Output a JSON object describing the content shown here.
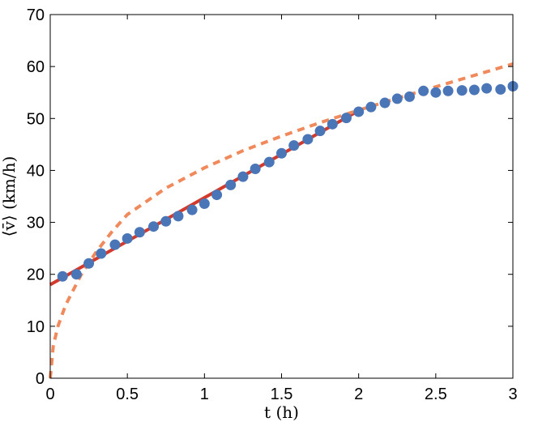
{
  "chart_data": {
    "type": "scatter",
    "xlabel": "t (h)",
    "ylabel": "⟨v̄⟩ (km/h)",
    "xlim": [
      0,
      3
    ],
    "ylim": [
      0,
      70
    ],
    "x_ticks": [
      0,
      0.5,
      1,
      1.5,
      2,
      2.5,
      3
    ],
    "x_tick_labels": [
      "0",
      "0.5",
      "1",
      "1.5",
      "2",
      "2.5",
      "3"
    ],
    "y_ticks": [
      0,
      10,
      20,
      30,
      40,
      50,
      60,
      70
    ],
    "y_tick_labels": [
      "0",
      "10",
      "20",
      "30",
      "40",
      "50",
      "60",
      "70"
    ],
    "grid": false,
    "colors": {
      "points": "#4a76b8",
      "linear_fit": "#d33a2c",
      "power_fit": "#f08a5d"
    },
    "series": [
      {
        "kind": "points",
        "x": [
          0.08,
          0.17,
          0.25,
          0.33,
          0.42,
          0.5,
          0.58,
          0.67,
          0.75,
          0.83,
          0.92,
          1.0,
          1.08,
          1.17,
          1.25,
          1.33,
          1.42,
          1.5,
          1.58,
          1.67,
          1.75,
          1.83,
          1.92,
          2.0,
          2.08,
          2.17,
          2.25,
          2.33,
          2.42,
          2.5,
          2.58,
          2.67,
          2.75,
          2.83,
          2.92,
          3.0
        ],
        "y": [
          19.6,
          20.0,
          22.1,
          24.0,
          25.7,
          26.9,
          28.1,
          29.2,
          30.2,
          31.2,
          32.4,
          33.6,
          35.3,
          37.2,
          38.8,
          40.3,
          41.6,
          43.3,
          44.8,
          46.0,
          47.6,
          48.9,
          50.1,
          51.3,
          52.2,
          53.0,
          53.8,
          54.2,
          55.3,
          55.0,
          55.3,
          55.4,
          55.5,
          55.8,
          55.6,
          56.2
        ]
      },
      {
        "kind": "line",
        "style": "solid",
        "x": [
          0,
          2.0
        ],
        "y": [
          18.0,
          51.5
        ]
      },
      {
        "kind": "line",
        "style": "dashed",
        "x": [
          0,
          0.02,
          0.05,
          0.1,
          0.2,
          0.3,
          0.4,
          0.5,
          0.75,
          1.0,
          1.25,
          1.5,
          1.75,
          2.0,
          2.25,
          2.5,
          2.75,
          3.0
        ],
        "y": [
          0,
          6.3,
          10.0,
          14.1,
          19.9,
          24.4,
          28.2,
          31.5,
          36.6,
          40.5,
          43.8,
          46.6,
          49.2,
          51.6,
          53.9,
          56.1,
          58.3,
          60.5
        ]
      }
    ]
  }
}
